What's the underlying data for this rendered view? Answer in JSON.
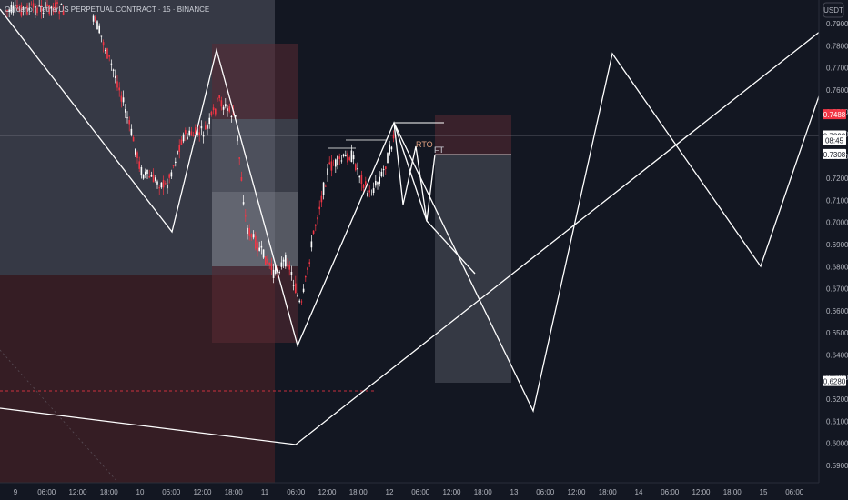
{
  "header": {
    "symbol": "Cardano / TetherUS PERPETUAL CONTRACT · 15 · BINANCE"
  },
  "price_axis": {
    "currency": "USDT",
    "ticks": [
      "0.7900",
      "0.7800",
      "0.7700",
      "0.7600",
      "0.7500",
      "0.7400",
      "0.7300",
      "0.7200",
      "0.7100",
      "0.7000",
      "0.6900",
      "0.6800",
      "0.6700",
      "0.6600",
      "0.6500",
      "0.6400",
      "0.6300",
      "0.6200",
      "0.6100",
      "0.6000",
      "0.5900"
    ],
    "tags": [
      {
        "text": "0.7488",
        "bg": "#f23645",
        "fg": "#ffffff",
        "price": 0.7488
      },
      {
        "text": "0.7392",
        "bg": "#ffffff",
        "fg": "#131722",
        "price": 0.7392
      },
      {
        "text": "08:45",
        "bg": "#ffffff",
        "fg": "#131722",
        "price": 0.7372
      },
      {
        "text": "0.7308",
        "bg": "#ffffff",
        "fg": "#131722",
        "price": 0.7308
      },
      {
        "text": "0.6280",
        "bg": "#ffffff",
        "fg": "#131722",
        "price": 0.628
      }
    ]
  },
  "time_axis": {
    "ticks": [
      "9",
      "06:00",
      "12:00",
      "18:00",
      "10",
      "06:00",
      "12:00",
      "18:00",
      "11",
      "06:00",
      "12:00",
      "18:00",
      "12",
      "06:00",
      "12:00",
      "18:00",
      "13",
      "06:00",
      "12:00",
      "18:00",
      "14",
      "06:00",
      "12:00",
      "18:00",
      "15",
      "06:00"
    ]
  },
  "annotations": {
    "rto": "RTO",
    "ft": "FT"
  },
  "colors": {
    "background": "#131722",
    "candle_up": "#ffffff",
    "candle_down": "#f23645",
    "line": "#ffffff",
    "zone_grey": "#434651",
    "zone_red": "#3a1e25"
  },
  "chart_data": {
    "type": "candlestick",
    "title": "Cardano / TetherUS PERPETUAL CONTRACT · 15 · BINANCE",
    "ylabel": "USDT",
    "ylim": [
      0.584,
      0.8
    ],
    "grid": false,
    "price_lines": [
      0.7392,
      0.7488,
      0.7308,
      0.628
    ],
    "projection_path": {
      "x": [
        "11 06:00",
        "12 00:00",
        "12 06:00",
        "12 18:00",
        "13 06:00",
        "13 18:00",
        "14 18:00",
        "15 00:00",
        "15 06:00"
      ],
      "y": [
        0.645,
        0.74,
        0.701,
        0.675,
        0.615,
        0.777,
        0.681,
        0.76,
        0.76
      ]
    }
  }
}
